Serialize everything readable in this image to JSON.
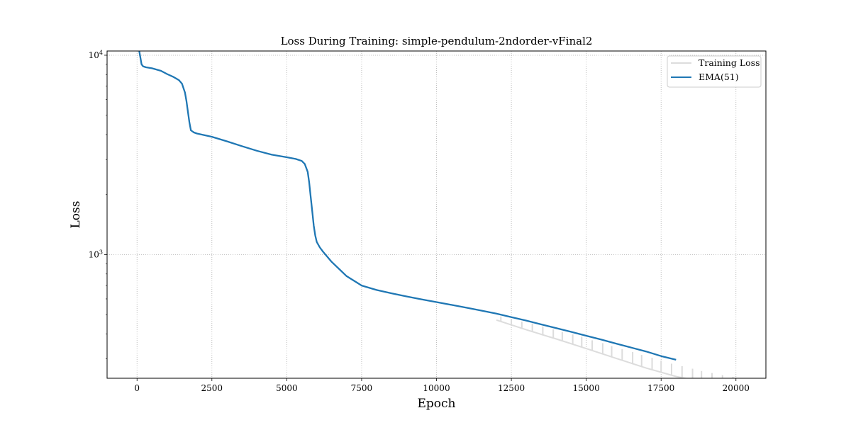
{
  "chart_data": {
    "type": "line",
    "title": "Loss During Training: simple-pendulum-2ndorder-vFinal2",
    "xlabel": "Epoch",
    "ylabel": "Loss",
    "xlim": [
      -1000,
      21000
    ],
    "ylim": [
      240,
      10500
    ],
    "yscale": "log",
    "grid": true,
    "legend_position": "top-right",
    "x_ticks": [
      0,
      2500,
      5000,
      7500,
      10000,
      12500,
      15000,
      17500,
      20000
    ],
    "y_ticks": [
      {
        "value": 1000,
        "base": "10",
        "exp": "3"
      },
      {
        "value": 10000,
        "base": "10",
        "exp": "4"
      }
    ],
    "series": [
      {
        "name": "Training Loss",
        "color": "#dcdcdc",
        "base_x": [
          12000,
          13000,
          14000,
          15000,
          16000,
          17000,
          18000,
          19000,
          20000
        ],
        "base_y": [
          470,
          420,
          378,
          338,
          302,
          270,
          245,
          228,
          215
        ],
        "spikes": [
          {
            "x": 12150,
            "top": 490
          },
          {
            "x": 12500,
            "top": 475
          },
          {
            "x": 12850,
            "top": 462
          },
          {
            "x": 13200,
            "top": 452
          },
          {
            "x": 13550,
            "top": 437
          },
          {
            "x": 13900,
            "top": 422
          },
          {
            "x": 14200,
            "top": 410
          },
          {
            "x": 14550,
            "top": 398
          },
          {
            "x": 14850,
            "top": 388
          },
          {
            "x": 15200,
            "top": 372
          },
          {
            "x": 15550,
            "top": 360
          },
          {
            "x": 15850,
            "top": 348
          },
          {
            "x": 16200,
            "top": 336
          },
          {
            "x": 16550,
            "top": 325
          },
          {
            "x": 16850,
            "top": 314
          },
          {
            "x": 17200,
            "top": 304
          },
          {
            "x": 17500,
            "top": 294
          },
          {
            "x": 17850,
            "top": 284
          },
          {
            "x": 18200,
            "top": 276
          },
          {
            "x": 18550,
            "top": 268
          },
          {
            "x": 18850,
            "top": 261
          },
          {
            "x": 19200,
            "top": 255
          },
          {
            "x": 19550,
            "top": 249
          },
          {
            "x": 19900,
            "top": 244
          }
        ]
      },
      {
        "name": "EMA(51)",
        "color": "#1f77b4",
        "x": [
          50,
          100,
          150,
          200,
          300,
          500,
          800,
          1000,
          1200,
          1400,
          1500,
          1600,
          1650,
          1700,
          1750,
          1800,
          1850,
          1900,
          2000,
          2500,
          3000,
          3500,
          4000,
          4500,
          5000,
          5300,
          5500,
          5600,
          5700,
          5750,
          5800,
          5850,
          5900,
          5950,
          6000,
          6100,
          6200,
          6500,
          7000,
          7500,
          8000,
          8500,
          9000,
          9500,
          10000,
          10500,
          11000,
          11500,
          12000,
          12500,
          13000,
          13500,
          14000,
          14500,
          15000,
          15500,
          16000,
          16500,
          17000,
          17500,
          18000
        ],
        "y": [
          11000,
          10000,
          9000,
          8800,
          8700,
          8600,
          8350,
          8050,
          7800,
          7500,
          7200,
          6500,
          5900,
          5200,
          4600,
          4200,
          4150,
          4100,
          4050,
          3900,
          3700,
          3500,
          3320,
          3170,
          3080,
          3020,
          2950,
          2850,
          2600,
          2300,
          1950,
          1650,
          1400,
          1250,
          1160,
          1090,
          1040,
          920,
          780,
          700,
          665,
          640,
          617,
          597,
          578,
          560,
          542,
          524,
          506,
          486,
          467,
          447,
          428,
          410,
          392,
          375,
          358,
          342,
          327,
          310,
          297
        ]
      }
    ]
  }
}
